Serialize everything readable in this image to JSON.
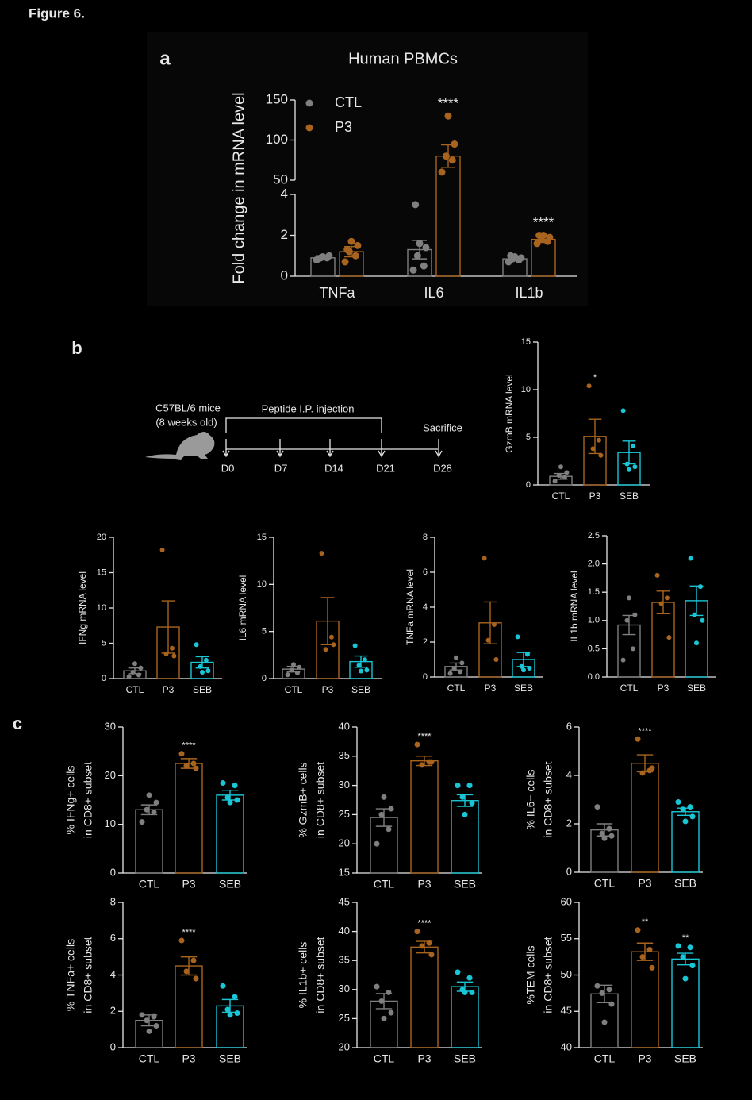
{
  "figure_title": "Figure 6.",
  "panel_labels": [
    "a",
    "b",
    "c"
  ],
  "timeline": {
    "mouse": [
      "C57BL/6 mice",
      "(8 weeks old)"
    ],
    "treatment": "Peptide I.P. injection",
    "endpoint": "Sacrifice",
    "days": [
      "D0",
      "D7",
      "D14",
      "D21",
      "D28"
    ]
  },
  "chart_data": [
    {
      "type": "bar",
      "title": "Human PBMCs",
      "ylabel": "Fold change in mRNA level",
      "categories": [
        "TNFa",
        "IL6",
        "IL1b"
      ],
      "ylim": [
        0,
        150
      ],
      "ybreak": [
        4,
        50
      ],
      "yticks": [
        0,
        2,
        4,
        50,
        100,
        150
      ],
      "series": [
        {
          "name": "CTL",
          "color": "#7f7f7f",
          "values": [
            0.9,
            1.3,
            0.85
          ],
          "errors": [
            0.1,
            0.45,
            0.1
          ],
          "points": [
            [
              0.8,
              0.9,
              0.9,
              1.0,
              0.95,
              0.85
            ],
            [
              0.3,
              0.5,
              1.0,
              1.4,
              1.6,
              3.5
            ],
            [
              0.7,
              0.8,
              0.85,
              0.9,
              0.95,
              1.0
            ]
          ],
          "significance": [
            null,
            null,
            null
          ]
        },
        {
          "name": "P3",
          "color": "#a8641e",
          "values": [
            1.2,
            80,
            1.8
          ],
          "errors": [
            0.25,
            14,
            0.15
          ],
          "points": [
            [
              0.7,
              1.0,
              1.2,
              1.5,
              1.7,
              1.3
            ],
            [
              60,
              75,
              80,
              95,
              130
            ],
            [
              1.6,
              1.7,
              1.8,
              1.9,
              2.0,
              2.0
            ]
          ],
          "significance": [
            null,
            "****",
            "****"
          ]
        }
      ]
    },
    {
      "type": "bar",
      "ylabel": [
        "GzmB mRNA level"
      ],
      "categories": [
        "CTL",
        "P3",
        "SEB"
      ],
      "colors": [
        "#7f7f7f",
        "#a8641e",
        "#19c6d6"
      ],
      "values": [
        0.9,
        5.1,
        3.4
      ],
      "errors": [
        0.3,
        1.8,
        1.2
      ],
      "points": [
        [
          0.4,
          0.8,
          1.0,
          1.3,
          1.9
        ],
        [
          10.4,
          4.7,
          3.8,
          3.1
        ],
        [
          7.8,
          4.1,
          2.2,
          1.9,
          1.6
        ]
      ],
      "significance": [
        null,
        "*",
        null
      ],
      "ylim": [
        0,
        15
      ],
      "yticks": [
        0,
        5,
        10,
        15
      ]
    },
    {
      "type": "bar",
      "ylabel": [
        "IFNg mRNA level"
      ],
      "categories": [
        "CTL",
        "P3",
        "SEB"
      ],
      "colors": [
        "#7f7f7f",
        "#a8641e",
        "#19c6d6"
      ],
      "values": [
        1.1,
        7.3,
        2.3
      ],
      "errors": [
        0.4,
        3.7,
        0.8
      ],
      "points": [
        [
          0.3,
          0.5,
          0.9,
          1.5,
          2.1
        ],
        [
          18.2,
          4.3,
          3.5,
          3.2
        ],
        [
          4.8,
          2.6,
          1.7,
          1.1,
          0.9
        ]
      ],
      "significance": [
        null,
        null,
        null
      ],
      "ylim": [
        0,
        20
      ],
      "yticks": [
        0,
        5,
        10,
        15,
        20
      ]
    },
    {
      "type": "bar",
      "ylabel": [
        "IL6 mRNA level"
      ],
      "categories": [
        "CTL",
        "P3",
        "SEB"
      ],
      "colors": [
        "#7f7f7f",
        "#a8641e",
        "#19c6d6"
      ],
      "values": [
        1.0,
        6.1,
        1.8
      ],
      "errors": [
        0.3,
        2.5,
        0.6
      ],
      "points": [
        [
          0.4,
          0.6,
          0.9,
          1.2,
          1.5
        ],
        [
          13.3,
          4.4,
          3.1,
          3.6
        ],
        [
          3.5,
          2.0,
          1.4,
          0.9,
          0.8
        ]
      ],
      "significance": [
        null,
        null,
        null
      ],
      "ylim": [
        0,
        15
      ],
      "yticks": [
        0,
        5,
        10,
        15
      ]
    },
    {
      "type": "bar",
      "ylabel": [
        "TNFa mRNA level"
      ],
      "categories": [
        "CTL",
        "P3",
        "SEB"
      ],
      "colors": [
        "#7f7f7f",
        "#a8641e",
        "#19c6d6"
      ],
      "values": [
        0.6,
        3.1,
        1.0
      ],
      "errors": [
        0.2,
        1.2,
        0.4
      ],
      "points": [
        [
          0.2,
          0.3,
          0.5,
          0.8,
          1.1
        ],
        [
          6.8,
          3.0,
          2.1,
          1.0
        ],
        [
          2.3,
          1.3,
          0.6,
          0.5,
          0.4
        ]
      ],
      "significance": [
        null,
        null,
        null
      ],
      "ylim": [
        0,
        8
      ],
      "yticks": [
        0,
        2,
        4,
        6,
        8
      ]
    },
    {
      "type": "bar",
      "ylabel": [
        "IL1b mRNA level"
      ],
      "categories": [
        "CTL",
        "P3",
        "SEB"
      ],
      "colors": [
        "#7f7f7f",
        "#a8641e",
        "#19c6d6"
      ],
      "values": [
        0.92,
        1.32,
        1.35
      ],
      "errors": [
        0.17,
        0.2,
        0.26
      ],
      "points": [
        [
          0.3,
          0.5,
          1.0,
          1.1,
          1.4
        ],
        [
          1.8,
          1.4,
          1.3,
          0.7
        ],
        [
          2.1,
          1.6,
          1.1,
          1.0,
          0.6
        ]
      ],
      "significance": [
        null,
        null,
        null
      ],
      "ylim": [
        0,
        2.5
      ],
      "yticks": [
        {
          "value": 0,
          "label": "0.0"
        },
        0.5,
        {
          "value": 1,
          "label": "1.0"
        },
        1.5,
        {
          "value": 2,
          "label": "2.0"
        },
        2.5
      ]
    },
    {
      "type": "bar",
      "ylabel": [
        "% IFNg+ cells",
        "in CD8+ subset"
      ],
      "categories": [
        "CTL",
        "P3",
        "SEB"
      ],
      "colors": [
        "#7f7f7f",
        "#a8641e",
        "#19c6d6"
      ],
      "values": [
        13,
        22.5,
        16
      ],
      "errors": [
        1,
        1,
        1
      ],
      "points": [
        [
          10.5,
          12.5,
          13,
          14.5,
          16
        ],
        [
          24.5,
          22.5,
          22,
          21.5
        ],
        [
          18.5,
          18,
          15.5,
          15,
          14.5
        ]
      ],
      "significance": [
        null,
        "****",
        null
      ],
      "ylim": [
        0,
        30
      ],
      "yticks": [
        0,
        10,
        20,
        30
      ]
    },
    {
      "type": "bar",
      "ylabel": [
        "% GzmB+ cells",
        "in CD8+ subset"
      ],
      "categories": [
        "CTL",
        "P3",
        "SEB"
      ],
      "colors": [
        "#7f7f7f",
        "#a8641e",
        "#19c6d6"
      ],
      "values": [
        24.5,
        34.2,
        27.4
      ],
      "errors": [
        1.5,
        0.8,
        1
      ],
      "points": [
        [
          20,
          22.5,
          25,
          26,
          28
        ],
        [
          37,
          34,
          33.5,
          34
        ],
        [
          30,
          30,
          28,
          27,
          25
        ]
      ],
      "significance": [
        null,
        "****",
        null
      ],
      "ylim": [
        15,
        40
      ],
      "yticks": [
        15,
        20,
        25,
        30,
        35,
        40
      ]
    },
    {
      "type": "bar",
      "ylabel": [
        "% IL6+ cells",
        "in CD8+ subset"
      ],
      "categories": [
        "CTL",
        "P3",
        "SEB"
      ],
      "colors": [
        "#7f7f7f",
        "#a8641e",
        "#19c6d6"
      ],
      "values": [
        1.75,
        4.5,
        2.5
      ],
      "errors": [
        0.25,
        0.35,
        0.15
      ],
      "points": [
        [
          2.7,
          1.8,
          1.6,
          1.5,
          1.4
        ],
        [
          5.5,
          4.2,
          4.1,
          4.3
        ],
        [
          2.9,
          2.7,
          2.6,
          2.3,
          2.1
        ]
      ],
      "significance": [
        null,
        "****",
        null
      ],
      "ylim": [
        0,
        6
      ],
      "yticks": [
        0,
        2,
        4,
        6
      ]
    },
    {
      "type": "bar",
      "ylabel": [
        "% TNFa+ cells",
        "in CD8+ subset"
      ],
      "categories": [
        "CTL",
        "P3",
        "SEB"
      ],
      "colors": [
        "#7f7f7f",
        "#a8641e",
        "#19c6d6"
      ],
      "values": [
        1.5,
        4.5,
        2.3
      ],
      "errors": [
        0.3,
        0.5,
        0.35
      ],
      "points": [
        [
          1.8,
          1.7,
          1.5,
          1.2,
          0.9
        ],
        [
          5.9,
          4.8,
          4.2,
          3.8
        ],
        [
          3.4,
          2.8,
          2.1,
          1.9,
          1.8
        ]
      ],
      "significance": [
        null,
        "****",
        null
      ],
      "ylim": [
        0,
        8
      ],
      "yticks": [
        0,
        2,
        4,
        6,
        8
      ]
    },
    {
      "type": "bar",
      "ylabel": [
        "% IL1b+ cells",
        "in CD8+ subset"
      ],
      "categories": [
        "CTL",
        "P3",
        "SEB"
      ],
      "colors": [
        "#7f7f7f",
        "#a8641e",
        "#19c6d6"
      ],
      "values": [
        28,
        37.3,
        30.5
      ],
      "errors": [
        1.3,
        1,
        0.8
      ],
      "points": [
        [
          30.5,
          29.5,
          28,
          26,
          25
        ],
        [
          40,
          38,
          37.5,
          36
        ],
        [
          33,
          32,
          30,
          29.5,
          29.5
        ]
      ],
      "significance": [
        null,
        "****",
        null
      ],
      "ylim": [
        20,
        45
      ],
      "yticks": [
        20,
        25,
        30,
        35,
        40,
        45
      ]
    },
    {
      "type": "bar",
      "ylabel": [
        "%TEM cells",
        "in CD8+ subset"
      ],
      "categories": [
        "CTL",
        "P3",
        "SEB"
      ],
      "colors": [
        "#7f7f7f",
        "#a8641e",
        "#19c6d6"
      ],
      "values": [
        47.4,
        53.2,
        52.2
      ],
      "errors": [
        1.2,
        1.2,
        0.8
      ],
      "points": [
        [
          48.5,
          48,
          47.5,
          46,
          43.5
        ],
        [
          56.2,
          53.5,
          52.5,
          51
        ],
        [
          54,
          53.8,
          52.5,
          51.3,
          49.5
        ]
      ],
      "significance": [
        null,
        "**",
        "**"
      ],
      "ylim": [
        40,
        60
      ],
      "yticks": [
        40,
        45,
        50,
        55,
        60
      ]
    }
  ]
}
